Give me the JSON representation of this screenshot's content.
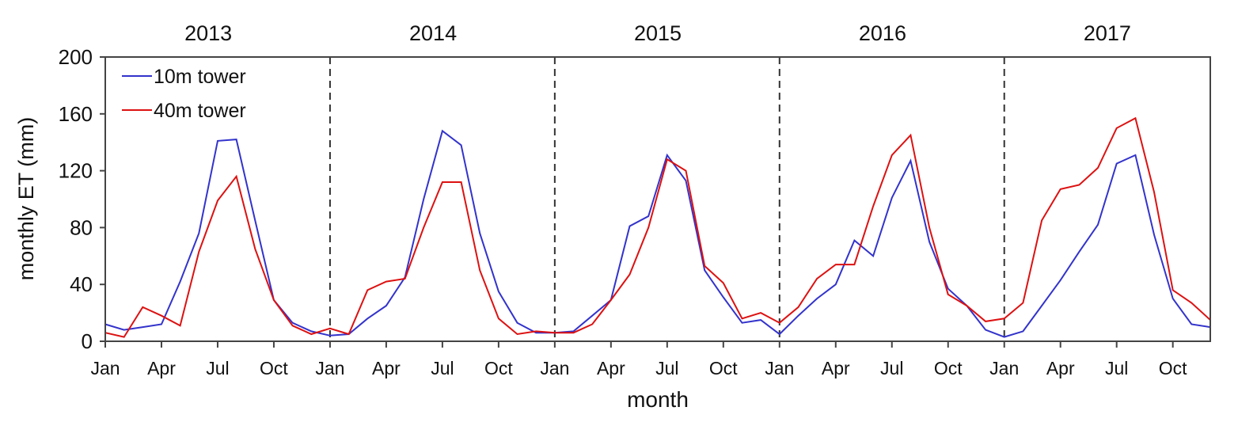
{
  "chart_data": {
    "type": "line",
    "xlabel": "month",
    "ylabel": "monthly ET (mm)",
    "ylim": [
      0,
      200
    ],
    "yticks": [
      0,
      40,
      80,
      120,
      160,
      200
    ],
    "years": [
      "2013",
      "2014",
      "2015",
      "2016",
      "2017"
    ],
    "month_tick_labels": [
      "Jan",
      "Apr",
      "Jul",
      "Oct"
    ],
    "legend_placement": "top-left",
    "grid": false,
    "year_separators": "dashed",
    "series": [
      {
        "name": "10m tower",
        "color": "#3333cc",
        "values": [
          12,
          8,
          10,
          12,
          42,
          76,
          141,
          142,
          85,
          29,
          13,
          7,
          4,
          5,
          16,
          25,
          45,
          100,
          148,
          138,
          76,
          35,
          13,
          6,
          6,
          7,
          18,
          29,
          81,
          88,
          131,
          113,
          50,
          31,
          13,
          15,
          5,
          18,
          30,
          40,
          71,
          60,
          101,
          127,
          70,
          37,
          25,
          8,
          3,
          7,
          25,
          43,
          63,
          82,
          125,
          131,
          75,
          30,
          12,
          10
        ]
      },
      {
        "name": "40m tower",
        "color": "#dd1111",
        "values": [
          6,
          3,
          24,
          18,
          11,
          63,
          99,
          116,
          65,
          29,
          11,
          5,
          9,
          5,
          36,
          42,
          44,
          80,
          112,
          112,
          50,
          16,
          5,
          7,
          6,
          6,
          12,
          29,
          47,
          80,
          128,
          120,
          53,
          41,
          16,
          20,
          13,
          24,
          44,
          54,
          54,
          95,
          131,
          145,
          80,
          33,
          25,
          14,
          16,
          27,
          85,
          107,
          110,
          122,
          150,
          157,
          105,
          36,
          27,
          15
        ]
      }
    ]
  }
}
